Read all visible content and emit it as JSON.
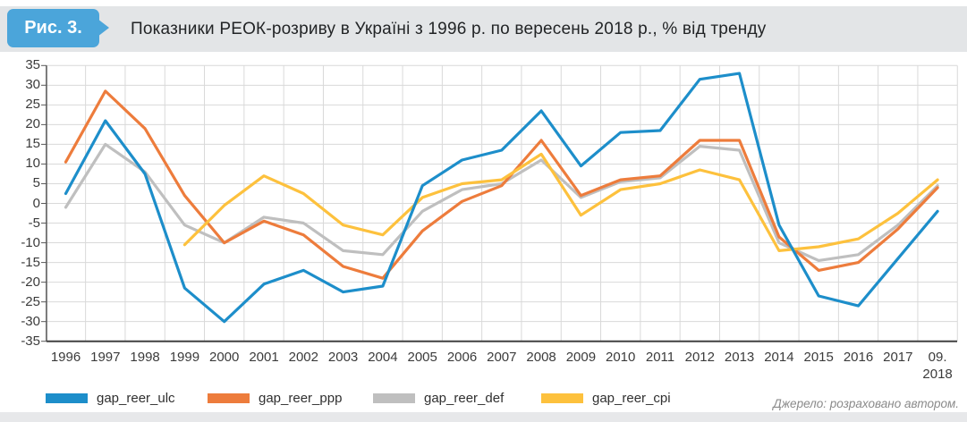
{
  "figure": {
    "badge": "Рис. 3.",
    "title": "Показники РЕОК-розриву в Україні з 1996 р. по  вересень 2018 р., % від тренду"
  },
  "source_note": "Джерело: розраховано автором.",
  "colors": {
    "badge_blue": "#4ba5da",
    "header_band": "#e3e5e7",
    "gridline": "#d9d9d9",
    "axis": "#595959",
    "series_ulc": "#1d8eca",
    "series_ppp": "#ed7c3c",
    "series_def": "#bfbfbf",
    "series_cpi": "#fdc13d"
  },
  "chart_data": {
    "type": "line",
    "title": "Показники РЕОК-розриву в Україні з 1996 р. по вересень 2018 р., % від тренду",
    "xlabel": "",
    "ylabel": "% від тренду",
    "ylim": [
      -35,
      35
    ],
    "ytick_step": 5,
    "grid": true,
    "legend_position": "bottom",
    "categories": [
      "1996",
      "1997",
      "1998",
      "1999",
      "2000",
      "2001",
      "2002",
      "2003",
      "2004",
      "2005",
      "2006",
      "2007",
      "2008",
      "2009",
      "2010",
      "2011",
      "2012",
      "2013",
      "2014",
      "2015",
      "2016",
      "2017",
      "09.\n2018"
    ],
    "series": [
      {
        "name": "gap_reer_ulc",
        "color": "#1d8eca",
        "values": [
          2.5,
          21,
          7.5,
          -21.5,
          -30,
          -20.5,
          -17,
          -22.5,
          -21,
          4.5,
          11,
          13.5,
          23.5,
          9.5,
          18,
          18.5,
          31.5,
          33,
          -5.5,
          -23.5,
          -26,
          -14,
          -2
        ]
      },
      {
        "name": "gap_reer_ppp",
        "color": "#ed7c3c",
        "values": [
          10.5,
          28.5,
          19,
          2,
          -10,
          -4.5,
          -8,
          -16,
          -19,
          -7,
          0.5,
          4.5,
          16,
          2,
          6,
          7,
          16,
          16,
          -8.5,
          -17,
          -15,
          -6.5,
          4
        ]
      },
      {
        "name": "gap_reer_def",
        "color": "#bfbfbf",
        "values": [
          -1,
          15,
          8,
          -5.5,
          -10,
          -3.5,
          -5,
          -12,
          -13,
          -2,
          3.5,
          5,
          11,
          1.5,
          5.5,
          6.5,
          14.5,
          13.5,
          -10,
          -14.5,
          -13,
          -5.5,
          4.5
        ]
      },
      {
        "name": "gap_reer_cpi",
        "color": "#fdc13d",
        "values": [
          null,
          null,
          null,
          -10.5,
          -0.5,
          7,
          2.5,
          -5.5,
          -8,
          1.5,
          5,
          6,
          12.5,
          -3,
          3.5,
          5,
          8.5,
          6,
          -12,
          -11,
          -9,
          -2.5,
          6
        ]
      }
    ]
  }
}
